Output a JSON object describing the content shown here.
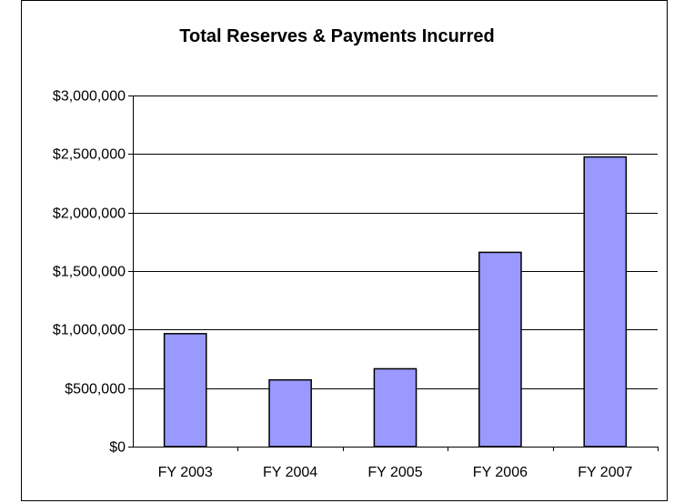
{
  "chart_data": {
    "type": "bar",
    "title": "Total Reserves & Payments Incurred",
    "xlabel": "",
    "ylabel": "",
    "categories": [
      "FY 2003",
      "FY 2004",
      "FY 2005",
      "FY 2006",
      "FY 2007"
    ],
    "values": [
      965000,
      570000,
      665000,
      1660000,
      2475000
    ],
    "ylim": [
      0,
      3000000
    ],
    "yticks": [
      0,
      500000,
      1000000,
      1500000,
      2000000,
      2500000,
      3000000
    ],
    "ytick_labels": [
      "$0",
      "$500,000",
      "$1,000,000",
      "$1,500,000",
      "$2,000,000",
      "$2,500,000",
      "$3,000,000"
    ],
    "grid": true,
    "legend": "none",
    "colors": {
      "bar_fill": "#9999FF",
      "bar_stroke": "#000000",
      "grid": "#000000",
      "background": "#FFFFFF"
    }
  }
}
